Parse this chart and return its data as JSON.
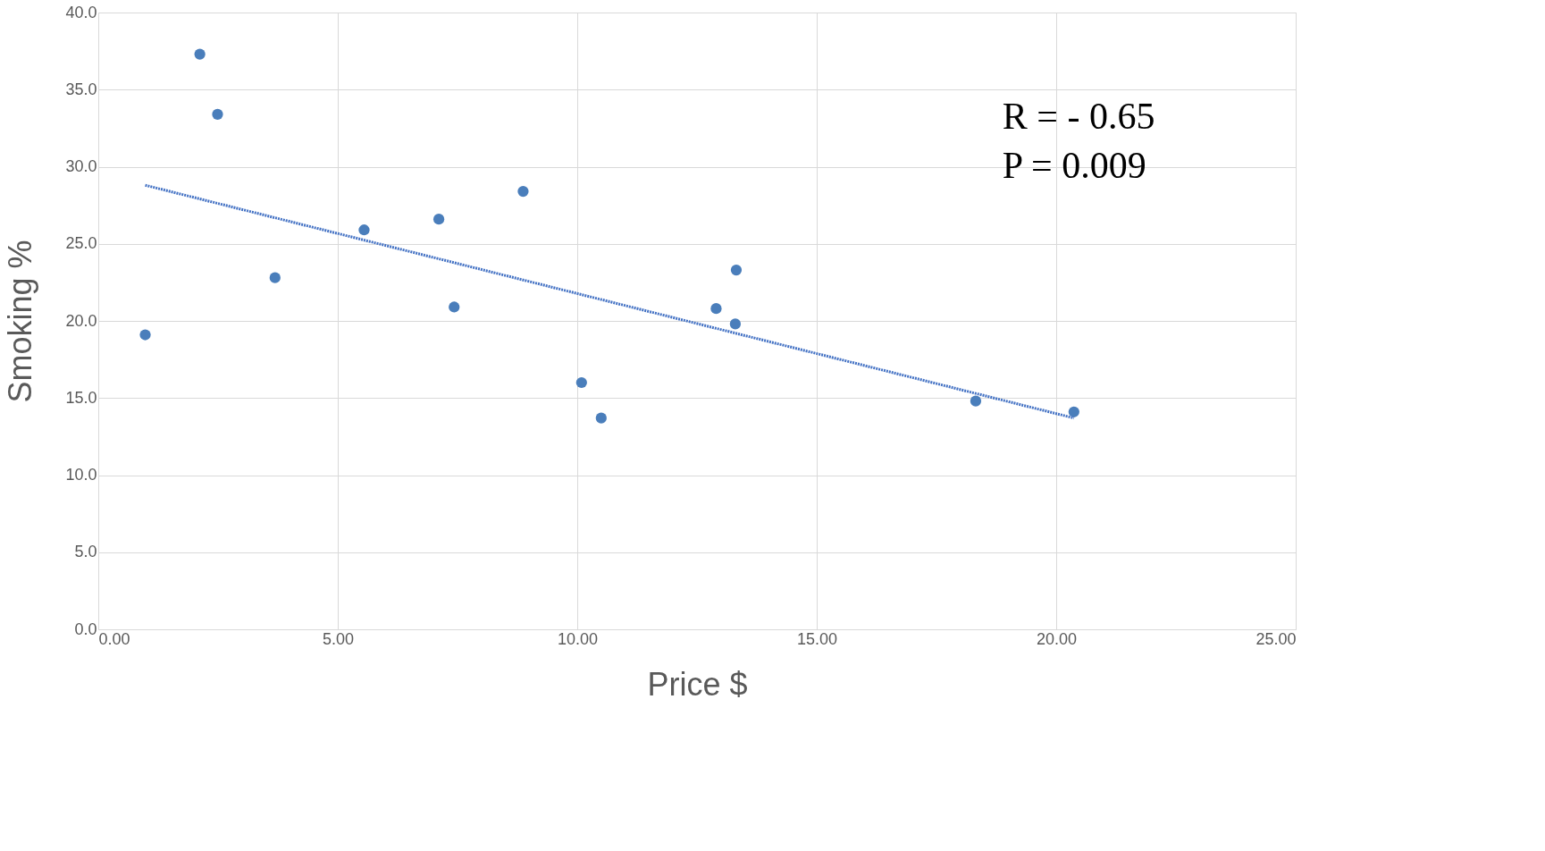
{
  "chart_data": {
    "type": "scatter",
    "xlabel": "Price $",
    "ylabel": "Smoking %",
    "annotations": [
      "R = - 0.65",
      "P =  0.009"
    ],
    "series": [
      {
        "type": "scatter",
        "color": "#4a7ebb",
        "marker": "circle",
        "x": [
          0.98,
          2.12,
          2.49,
          3.69,
          5.55,
          7.11,
          7.43,
          8.87,
          10.09,
          10.5,
          12.9,
          13.32,
          13.3,
          18.32,
          20.37
        ],
        "values": [
          19.1,
          37.3,
          33.4,
          22.8,
          25.9,
          26.6,
          20.9,
          28.4,
          16.0,
          13.7,
          20.8,
          23.3,
          19.8,
          14.8,
          14.1
        ]
      },
      {
        "type": "line",
        "color": "#4472c4",
        "line_style": "dotted",
        "x": [
          0.98,
          20.37
        ],
        "values": [
          28.8,
          13.7
        ]
      }
    ],
    "xlim": [
      0,
      25
    ],
    "ylim": [
      0,
      40
    ],
    "xticks": [
      {
        "value": 0,
        "label": "0.00"
      },
      {
        "value": 5,
        "label": "5.00"
      },
      {
        "value": 10,
        "label": "10.00"
      },
      {
        "value": 15,
        "label": "15.00"
      },
      {
        "value": 20,
        "label": "20.00"
      },
      {
        "value": 25,
        "label": "25.00"
      }
    ],
    "yticks": [
      {
        "value": 0,
        "label": "0.0"
      },
      {
        "value": 5,
        "label": "5.0"
      },
      {
        "value": 10,
        "label": "10.0"
      },
      {
        "value": 15,
        "label": "15.0"
      },
      {
        "value": 20,
        "label": "20.0"
      },
      {
        "value": 25,
        "label": "25.0"
      },
      {
        "value": 30,
        "label": "30.0"
      },
      {
        "value": 35,
        "label": "35.0"
      },
      {
        "value": 40,
        "label": "40.0"
      }
    ],
    "grid": true
  }
}
